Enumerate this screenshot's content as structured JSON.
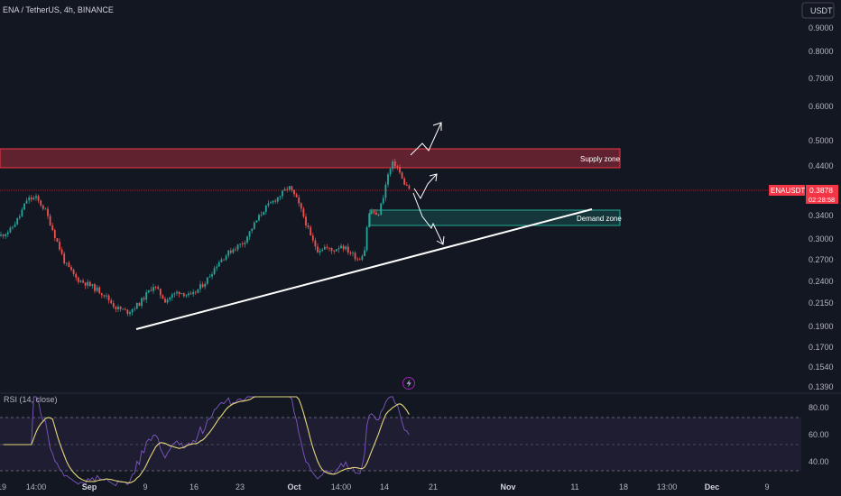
{
  "header": {
    "symbol_line": "ENA / TetherUS, 4h, BINANCE",
    "currency_button": "USDT"
  },
  "chart_data": {
    "type": "candlestick",
    "price_ticks": [
      "0.9000",
      "0.8000",
      "0.7000",
      "0.6000",
      "0.5000",
      "0.4400",
      "0.3400",
      "0.3000",
      "0.2700",
      "0.2400",
      "0.2150",
      "0.1900",
      "0.1700",
      "0.1540",
      "0.1390"
    ],
    "rsi_ticks": [
      "80.00",
      "60.00",
      "40.00"
    ],
    "time_ticks": [
      {
        "label": "19",
        "bold": false
      },
      {
        "label": "14:00",
        "bold": false
      },
      {
        "label": "Sep",
        "bold": true
      },
      {
        "label": "9",
        "bold": false
      },
      {
        "label": "16",
        "bold": false
      },
      {
        "label": "23",
        "bold": false
      },
      {
        "label": "Oct",
        "bold": true
      },
      {
        "label": "14:00",
        "bold": false
      },
      {
        "label": "14",
        "bold": false
      },
      {
        "label": "21",
        "bold": false
      },
      {
        "label": "Nov",
        "bold": true
      },
      {
        "label": "11",
        "bold": false
      },
      {
        "label": "18",
        "bold": false
      },
      {
        "label": "13:00",
        "bold": false
      },
      {
        "label": "Dec",
        "bold": true
      },
      {
        "label": "9",
        "bold": false
      }
    ],
    "last_price": {
      "symbol": "ENAUSDT",
      "price": "0.3878",
      "countdown": "02:28:58"
    },
    "supply_zone": {
      "label": "Supply zone",
      "top": 0.49,
      "bottom": 0.43
    },
    "demand_zone": {
      "label": "Demand zone",
      "top": 0.35,
      "bottom": 0.327
    },
    "rsi": {
      "label": "RSI (14, close)",
      "upper_band": 70,
      "middle": 50,
      "lower_band": 30
    },
    "colors": {
      "up": "#26a69a",
      "down": "#ef5350",
      "rsi_line": "#7e57c2",
      "rsi_ma": "#e6d67a",
      "supply": "#f23645",
      "demand": "#22ab94"
    },
    "series_waypoints": [
      [
        0,
        0.305
      ],
      [
        12,
        0.315
      ],
      [
        22,
        0.34
      ],
      [
        30,
        0.37
      ],
      [
        40,
        0.372
      ],
      [
        50,
        0.35
      ],
      [
        62,
        0.3
      ],
      [
        72,
        0.265
      ],
      [
        85,
        0.243
      ],
      [
        100,
        0.235
      ],
      [
        115,
        0.225
      ],
      [
        128,
        0.21
      ],
      [
        142,
        0.205
      ],
      [
        155,
        0.215
      ],
      [
        170,
        0.235
      ],
      [
        183,
        0.218
      ],
      [
        198,
        0.228
      ],
      [
        212,
        0.222
      ],
      [
        228,
        0.24
      ],
      [
        243,
        0.268
      ],
      [
        258,
        0.285
      ],
      [
        270,
        0.295
      ],
      [
        280,
        0.32
      ],
      [
        292,
        0.35
      ],
      [
        302,
        0.365
      ],
      [
        312,
        0.38
      ],
      [
        320,
        0.395
      ],
      [
        328,
        0.372
      ],
      [
        336,
        0.34
      ],
      [
        345,
        0.3
      ],
      [
        352,
        0.284
      ],
      [
        360,
        0.288
      ],
      [
        368,
        0.282
      ],
      [
        378,
        0.291
      ],
      [
        388,
        0.28
      ],
      [
        398,
        0.27
      ],
      [
        404,
        0.285
      ],
      [
        408,
        0.34
      ],
      [
        413,
        0.35
      ],
      [
        418,
        0.335
      ],
      [
        424,
        0.37
      ],
      [
        430,
        0.42
      ],
      [
        436,
        0.448
      ],
      [
        441,
        0.435
      ],
      [
        446,
        0.408
      ],
      [
        451,
        0.395
      ],
      [
        456,
        0.388
      ]
    ]
  }
}
